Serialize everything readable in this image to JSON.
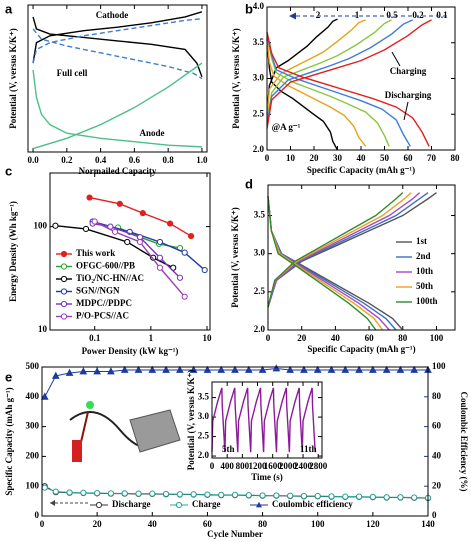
{
  "chart_data": [
    {
      "type": "line",
      "panel_label": "a",
      "xlabel": "Normailed Capacity",
      "ylabel": "Potential (V, versus K/K⁺)",
      "xlim": [
        -0.03,
        1.03
      ],
      "xticks": [
        {
          "value": 0,
          "label": "0.0"
        },
        {
          "value": 0.2,
          "label": "0.2"
        },
        {
          "value": 0.4,
          "label": "0.4"
        },
        {
          "value": 0.6,
          "label": "0.6"
        },
        {
          "value": 0.8,
          "label": "0.8"
        },
        {
          "value": 1,
          "label": "1.0"
        }
      ],
      "ylim": [
        -0.1,
        4.2
      ],
      "series": [
        {
          "name": "Cathode",
          "color": "#000000",
          "x": [
            0,
            0.02,
            0.1,
            0.3,
            0.5,
            0.7,
            0.9,
            1.0,
            null,
            0,
            0.02,
            0.1,
            0.3,
            0.5,
            0.7,
            0.9,
            0.97,
            1.0
          ],
          "values": [
            2.5,
            3.1,
            3.3,
            3.45,
            3.55,
            3.68,
            3.85,
            4.0,
            null,
            3.85,
            3.5,
            3.35,
            3.25,
            3.15,
            3.05,
            2.9,
            2.5,
            2.1
          ]
        },
        {
          "name": "Full cell",
          "color": "#3b7dd8",
          "dash": true,
          "x": [
            0,
            0.02,
            0.1,
            0.3,
            0.5,
            0.7,
            0.9,
            1.0,
            null,
            0,
            0.05,
            0.2,
            0.4,
            0.6,
            0.8,
            0.95,
            1.0
          ],
          "values": [
            2.5,
            2.9,
            3.1,
            3.3,
            3.45,
            3.6,
            3.75,
            3.8,
            null,
            3.5,
            3.2,
            3.0,
            2.8,
            2.6,
            2.4,
            2.2,
            2.05
          ]
        },
        {
          "name": "Anode",
          "color": "#4cbf8a",
          "x": [
            0,
            0.02,
            0.05,
            0.1,
            0.2,
            0.4,
            0.6,
            0.8,
            1.0,
            null,
            0,
            0.2,
            0.4,
            0.6,
            0.8,
            1.0
          ],
          "values": [
            2.3,
            1.5,
            1.0,
            0.7,
            0.45,
            0.3,
            0.2,
            0.1,
            0.05,
            null,
            0.0,
            0.3,
            0.7,
            1.2,
            1.8,
            2.5
          ]
        }
      ]
    },
    {
      "type": "line",
      "panel_label": "b",
      "xlabel": "Specific Capacity (mAh g⁻¹)",
      "ylabel": "Potential (V, versus K/K⁺)",
      "xlim": [
        0,
        80
      ],
      "xticks": [
        0,
        10,
        20,
        30,
        40,
        50,
        60,
        70,
        80
      ],
      "ylim": [
        2,
        4
      ],
      "yticks": [
        {
          "value": 2,
          "label": "2.0"
        },
        2.5,
        {
          "value": 3,
          "label": "3.0"
        },
        3.5,
        {
          "value": 4,
          "label": "4.0"
        }
      ],
      "annotations": [
        "Charging",
        "Discharging",
        "@A g⁻¹"
      ],
      "series": [
        {
          "name": "2",
          "color": "#000000",
          "x": [
            0,
            1,
            4,
            9,
            13,
            17,
            21,
            26,
            28,
            30,
            null,
            0,
            1,
            2,
            6,
            11,
            15,
            19,
            24,
            27,
            28,
            30
          ],
          "values": [
            2.5,
            2.9,
            3.15,
            3.25,
            3.35,
            3.45,
            3.58,
            3.72,
            3.8,
            3.83,
            null,
            3.55,
            3.15,
            2.95,
            2.82,
            2.72,
            2.62,
            2.52,
            2.4,
            2.25,
            2.12,
            2.0
          ]
        },
        {
          "name": "1",
          "color": "#e8a317",
          "x": [
            0,
            1,
            6,
            12,
            18,
            24,
            30,
            36,
            39,
            42,
            null,
            0,
            1,
            3,
            9,
            15,
            21,
            27,
            33,
            37,
            39,
            42
          ],
          "values": [
            2.45,
            2.85,
            3.07,
            3.17,
            3.27,
            3.37,
            3.52,
            3.68,
            3.78,
            3.82,
            null,
            3.58,
            3.23,
            3.03,
            2.9,
            2.8,
            2.7,
            2.6,
            2.48,
            2.33,
            2.18,
            2.05
          ]
        },
        {
          "name": "0.5",
          "color": "#8cc63e",
          "x": [
            0,
            2,
            7,
            15,
            23,
            30,
            38,
            46,
            50,
            53,
            null,
            0,
            2,
            4,
            11,
            19,
            27,
            34,
            42,
            47,
            50,
            52
          ],
          "values": [
            2.4,
            2.8,
            3.02,
            3.12,
            3.22,
            3.32,
            3.47,
            3.65,
            3.77,
            3.82,
            null,
            3.6,
            3.28,
            3.08,
            2.95,
            2.85,
            2.75,
            2.65,
            2.53,
            2.38,
            2.2,
            2.05
          ]
        },
        {
          "name": "0.2",
          "color": "#3b7dd8",
          "x": [
            0,
            2,
            9,
            18,
            27,
            35,
            44,
            53,
            58,
            62,
            null,
            0,
            2,
            4,
            13,
            22,
            31,
            40,
            49,
            55,
            58,
            61
          ],
          "values": [
            2.35,
            2.75,
            2.98,
            3.08,
            3.18,
            3.28,
            3.43,
            3.62,
            3.76,
            3.82,
            null,
            3.62,
            3.32,
            3.12,
            2.99,
            2.89,
            2.79,
            2.69,
            2.57,
            2.42,
            2.22,
            2.05
          ]
        },
        {
          "name": "0.1",
          "color": "#e02020",
          "x": [
            0,
            2,
            10,
            20,
            30,
            40,
            50,
            60,
            66,
            70,
            null,
            0,
            2,
            5,
            15,
            25,
            35,
            45,
            55,
            62,
            66,
            69
          ],
          "values": [
            2.3,
            2.7,
            2.95,
            3.05,
            3.15,
            3.25,
            3.4,
            3.6,
            3.75,
            3.82,
            null,
            3.65,
            3.35,
            3.15,
            3.02,
            2.92,
            2.82,
            2.72,
            2.6,
            2.45,
            2.25,
            2.05
          ]
        }
      ]
    },
    {
      "type": "line",
      "panel_label": "c",
      "xlabel": "Power Density (kW kg⁻¹)",
      "ylabel": "Energy Density (Wh kg⁻¹)",
      "xscale": "log",
      "yscale": "log",
      "xlim": [
        0.016,
        11.3
      ],
      "xticks": [
        0.1,
        1,
        10
      ],
      "ylim": [
        10,
        330
      ],
      "yticks": [
        10,
        100
      ],
      "series": [
        {
          "name": "This work",
          "color": "#e02020",
          "marker": "filled",
          "x": [
            0.081,
            0.28,
            0.72,
            2.2,
            5.2
          ],
          "values": [
            191,
            166,
            135,
            107,
            81
          ]
        },
        {
          "name": "OFGC-600//PB",
          "color": "#2ca02c",
          "marker": "open",
          "x": [
            0.26,
            0.64,
            1.4,
            3.3
          ],
          "values": [
            98,
            79,
            68,
            62
          ]
        },
        {
          "name": "TiO₂/NC-HN//AC",
          "color": "#000000",
          "marker": "open",
          "x": [
            0.02,
            0.07,
            0.38,
            1.1,
            2.5
          ],
          "values": [
            102,
            95,
            71,
            50,
            40
          ]
        },
        {
          "name": "SGN//NGN",
          "color": "#1f3aa0",
          "marker": "open",
          "x": [
            0.092,
            0.42,
            1.45,
            4.0,
            9.1
          ],
          "values": [
            112,
            89,
            71,
            56,
            38
          ]
        },
        {
          "name": "MDPC//PDPC",
          "color": "#7b2fbe",
          "marker": "open",
          "x": [
            0.092,
            0.19,
            0.64,
            1.45,
            3.3
          ],
          "values": [
            107,
            100,
            79,
            50,
            32
          ]
        },
        {
          "name": "P/O-PCS//AC",
          "color": "#9b3fb5",
          "marker": "open",
          "x": [
            0.1,
            0.23,
            0.64,
            1.45,
            4.0
          ],
          "values": [
            112,
            89,
            71,
            40,
            21
          ]
        }
      ]
    },
    {
      "type": "line",
      "panel_label": "d",
      "xlabel": "Specific Capacity (mAh g⁻¹)",
      "ylabel": "Potential (V, versus K/K⁺)",
      "xlim": [
        0,
        111
      ],
      "xticks": [
        0,
        20,
        40,
        60,
        80,
        100
      ],
      "ylim": [
        2,
        3.9
      ],
      "yticks": [
        {
          "value": 2,
          "label": "2.0"
        },
        2.5,
        {
          "value": 3,
          "label": "3.0"
        },
        3.5
      ],
      "series": [
        {
          "name": "1st",
          "color": "#555555",
          "x": [
            0,
            5,
            20,
            40,
            60,
            80,
            95,
            100,
            null,
            0,
            2,
            8,
            20,
            40,
            60,
            74,
            80
          ],
          "values": [
            2.3,
            2.65,
            2.9,
            3.1,
            3.3,
            3.5,
            3.72,
            3.8,
            null,
            3.75,
            3.3,
            3.0,
            2.85,
            2.6,
            2.35,
            2.15,
            2.0
          ]
        },
        {
          "name": "2nd",
          "color": "#3a6fc4",
          "x": [
            0,
            5,
            19,
            38,
            57,
            76,
            90,
            95,
            null,
            0,
            2,
            8,
            19,
            38,
            57,
            70,
            76
          ],
          "values": [
            2.3,
            2.65,
            2.9,
            3.1,
            3.3,
            3.5,
            3.72,
            3.8,
            null,
            3.75,
            3.3,
            3.0,
            2.85,
            2.6,
            2.35,
            2.15,
            2.0
          ]
        },
        {
          "name": "10th",
          "color": "#a64ac9",
          "x": [
            0,
            5,
            18,
            36,
            54,
            72,
            86,
            90,
            null,
            0,
            2,
            7,
            18,
            36,
            54,
            66,
            72
          ],
          "values": [
            2.3,
            2.65,
            2.9,
            3.1,
            3.3,
            3.5,
            3.72,
            3.8,
            null,
            3.75,
            3.3,
            3.0,
            2.85,
            2.6,
            2.35,
            2.15,
            2.0
          ]
        },
        {
          "name": "50th",
          "color": "#f0a020",
          "x": [
            0,
            4,
            17,
            34,
            51,
            68,
            81,
            85,
            null,
            0,
            2,
            7,
            17,
            34,
            51,
            63,
            68
          ],
          "values": [
            2.3,
            2.65,
            2.9,
            3.1,
            3.3,
            3.5,
            3.72,
            3.8,
            null,
            3.75,
            3.3,
            3.0,
            2.85,
            2.6,
            2.35,
            2.15,
            2.0
          ]
        },
        {
          "name": "100th",
          "color": "#2e8b2e",
          "x": [
            0,
            4,
            16,
            32,
            48,
            64,
            76,
            80,
            null,
            0,
            2,
            6,
            16,
            32,
            48,
            59,
            64
          ],
          "values": [
            2.3,
            2.65,
            2.9,
            3.1,
            3.3,
            3.5,
            3.72,
            3.8,
            null,
            3.75,
            3.3,
            3.0,
            2.85,
            2.6,
            2.35,
            2.15,
            2.0
          ]
        }
      ]
    },
    {
      "type": "line",
      "panel_label": "e",
      "xlabel": "Cycle Number",
      "ylabel": "Specific Capacity (mAh g⁻¹)",
      "y2label": "Coulombic Efficiency (%)",
      "xlim": [
        0,
        140
      ],
      "xticks": [
        0,
        20,
        40,
        60,
        80,
        100,
        120,
        140
      ],
      "ylim": [
        0,
        500
      ],
      "yticks": [
        0,
        100,
        200,
        300,
        400,
        500
      ],
      "y2lim": [
        0,
        100
      ],
      "y2ticks": [
        0,
        20,
        40,
        60,
        80,
        100
      ],
      "x": [
        1,
        5,
        10,
        15,
        20,
        25,
        30,
        35,
        40,
        45,
        50,
        55,
        60,
        65,
        70,
        75,
        80,
        85,
        90,
        95,
        100,
        105,
        110,
        115,
        120,
        125,
        130,
        135,
        140
      ],
      "series": [
        {
          "name": "Discharge",
          "color": "#333333",
          "marker": "open",
          "values": [
            100,
            80,
            78,
            77,
            76,
            75,
            75,
            74,
            74,
            73,
            72,
            72,
            71,
            70,
            70,
            69,
            68,
            68,
            67,
            66,
            66,
            65,
            64,
            64,
            63,
            62,
            62,
            61,
            60
          ]
        },
        {
          "name": "Charge",
          "color": "#2aa198",
          "marker": "open",
          "values": [
            95,
            82,
            79,
            78,
            77,
            76,
            76,
            75,
            75,
            74,
            73,
            73,
            72,
            71,
            71,
            70,
            69,
            69,
            68,
            67,
            67,
            66,
            65,
            65,
            64,
            63,
            63,
            62,
            61
          ]
        },
        {
          "name": "Coulombic efficiency",
          "color": "#1f3aa0",
          "marker": "triangle",
          "axis": "y2",
          "values": [
            80,
            94,
            96,
            97,
            97,
            97,
            98,
            98,
            98,
            98,
            98,
            98,
            98,
            98,
            98,
            98,
            98,
            99,
            98,
            98,
            98,
            98,
            98,
            98,
            98,
            98,
            98,
            98,
            98
          ]
        }
      ]
    },
    {
      "type": "line",
      "xlabel": "Time (s)",
      "ylabel": "Potential (V, versus K/K⁺)",
      "xlim": [
        0,
        2900
      ],
      "xticks": [
        0,
        400,
        800,
        1200,
        1600,
        2000,
        2400,
        2800
      ],
      "ylim": [
        1.95,
        3.9
      ],
      "yticks": [
        {
          "value": 2,
          "label": "2.0"
        },
        2.5,
        {
          "value": 3,
          "label": "3.0"
        },
        3.5
      ],
      "annotations": [
        "5th",
        "11th"
      ],
      "series": [
        {
          "color": "#8b1a9b",
          "x": [
            0,
            20,
            150,
            260,
            270,
            340,
            360,
            490,
            600,
            610,
            680,
            700,
            830,
            940,
            950,
            1020,
            1040,
            1170,
            1280,
            1290,
            1360,
            1380,
            1510,
            1620,
            1630,
            1700,
            1720,
            1850,
            1960,
            1970,
            2040,
            2060,
            2190,
            2300,
            2310,
            2380,
            2400,
            2530,
            2640,
            2650,
            2720
          ],
          "values": [
            2.1,
            2.9,
            3.4,
            3.75,
            3.3,
            2.1,
            2.9,
            3.4,
            3.75,
            3.3,
            2.1,
            2.9,
            3.4,
            3.75,
            3.3,
            2.1,
            2.9,
            3.4,
            3.75,
            3.3,
            2.1,
            2.9,
            3.4,
            3.75,
            3.3,
            2.1,
            2.9,
            3.4,
            3.75,
            3.3,
            2.1,
            2.9,
            3.4,
            3.75,
            3.3,
            2.1,
            2.9,
            3.4,
            3.75,
            3.3,
            2.1
          ]
        }
      ]
    }
  ]
}
